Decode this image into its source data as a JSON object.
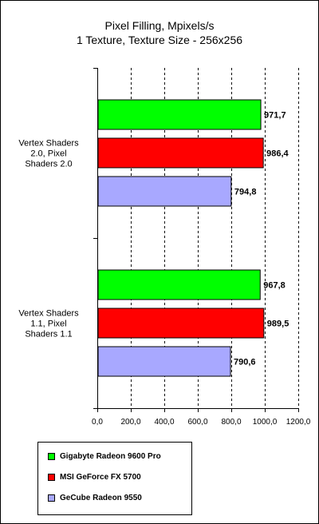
{
  "chart_data": {
    "type": "bar",
    "orientation": "horizontal",
    "title": [
      "Pixel Filling, Mpixels/s",
      "1 Texture, Texture Size - 256x256"
    ],
    "categories": [
      [
        "Vertex Shaders",
        "2.0, Pixel",
        "Shaders 2.0"
      ],
      [
        "Vertex Shaders",
        "1.1, Pixel",
        "Shaders 1.1"
      ]
    ],
    "series": [
      {
        "name": "Gigabyte Radeon 9600 Pro",
        "color": "#00ff00",
        "values": [
          971.7,
          967.8
        ],
        "labels": [
          "971,7",
          "967,8"
        ]
      },
      {
        "name": "MSI GeForce FX 5700",
        "color": "#ff0000",
        "values": [
          986.4,
          989.5
        ],
        "labels": [
          "986,4",
          "989,5"
        ]
      },
      {
        "name": "GeCube Radeon 9550",
        "color": "#a8a8ff",
        "values": [
          794.8,
          790.6
        ],
        "labels": [
          "794,8",
          "790,6"
        ]
      }
    ],
    "xlim": [
      0,
      1200
    ],
    "xticks": [
      0,
      200,
      400,
      600,
      800,
      1000,
      1200
    ],
    "xtick_labels": [
      "0,0",
      "200,0",
      "400,0",
      "600,0",
      "800,0",
      "1000,0",
      "1200,0"
    ],
    "grid": "vertical dashed",
    "legend_position": "bottom-left"
  }
}
